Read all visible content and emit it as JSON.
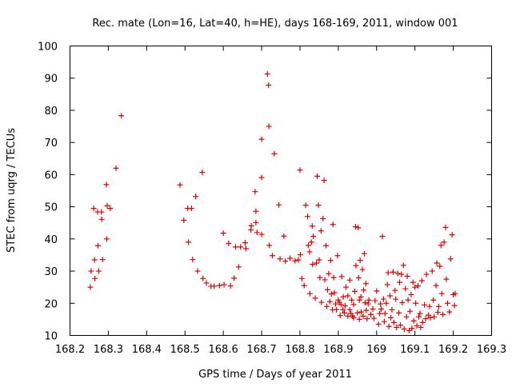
{
  "chart_data": {
    "type": "scatter",
    "title": "Rec. mate (Lon=16, Lat=40, h=HE), days 168-169, 2011, window 001",
    "xlabel": "GPS time / Days of year 2011",
    "ylabel": "STEC from uqrg / TECUs",
    "xlim": [
      168.2,
      169.3
    ],
    "ylim": [
      10,
      100
    ],
    "grid": false,
    "legend": "none",
    "marker": "plus",
    "marker_color": "#e00000",
    "x_ticks": [
      {
        "value": 168.2,
        "label": "168.2"
      },
      {
        "value": 168.3,
        "label": "168.3"
      },
      {
        "value": 168.4,
        "label": "168.4"
      },
      {
        "value": 168.5,
        "label": "168.5"
      },
      {
        "value": 168.6,
        "label": "168.6"
      },
      {
        "value": 168.7,
        "label": "168.7"
      },
      {
        "value": 168.8,
        "label": "168.8"
      },
      {
        "value": 168.9,
        "label": "168.9"
      },
      {
        "value": 169.0,
        "label": "169"
      },
      {
        "value": 169.1,
        "label": "169.1"
      },
      {
        "value": 169.2,
        "label": "169.2"
      },
      {
        "value": 169.3,
        "label": "169.3"
      }
    ],
    "y_ticks": [
      {
        "value": 10,
        "label": "10"
      },
      {
        "value": 20,
        "label": "20"
      },
      {
        "value": 30,
        "label": "30"
      },
      {
        "value": 40,
        "label": "40"
      },
      {
        "value": 50,
        "label": "50"
      },
      {
        "value": 60,
        "label": "60"
      },
      {
        "value": 70,
        "label": "70"
      },
      {
        "value": 80,
        "label": "80"
      },
      {
        "value": 90,
        "label": "90"
      },
      {
        "value": 100,
        "label": "100"
      }
    ],
    "series": [
      {
        "points": [
          [
            168.253,
            25.0
          ],
          [
            168.255,
            30.0
          ],
          [
            168.262,
            49.5
          ],
          [
            168.264,
            33.5
          ],
          [
            168.265,
            27.7
          ],
          [
            168.272,
            48.4
          ],
          [
            168.273,
            37.9
          ],
          [
            168.275,
            30.0
          ],
          [
            168.282,
            48.4
          ],
          [
            168.283,
            46.1
          ],
          [
            168.285,
            33.6
          ],
          [
            168.295,
            56.9
          ],
          [
            168.296,
            40.0
          ],
          [
            168.297,
            50.3
          ],
          [
            168.305,
            49.5
          ],
          [
            168.32,
            62.0
          ],
          [
            168.334,
            78.3
          ],
          [
            168.487,
            56.8
          ],
          [
            168.497,
            45.8
          ],
          [
            168.507,
            49.5
          ],
          [
            168.509,
            39.0
          ],
          [
            168.517,
            49.5
          ],
          [
            168.52,
            33.6
          ],
          [
            168.528,
            53.2
          ],
          [
            168.533,
            30.0
          ],
          [
            168.545,
            60.7
          ],
          [
            168.547,
            27.7
          ],
          [
            168.556,
            26.3
          ],
          [
            168.568,
            25.3
          ],
          [
            168.576,
            25.3
          ],
          [
            168.59,
            25.5
          ],
          [
            168.6,
            41.8
          ],
          [
            168.602,
            25.8
          ],
          [
            168.614,
            38.6
          ],
          [
            168.619,
            25.4
          ],
          [
            168.628,
            27.8
          ],
          [
            168.632,
            37.5
          ],
          [
            168.64,
            31.3
          ],
          [
            168.645,
            37.5
          ],
          [
            168.657,
            38.8
          ],
          [
            168.659,
            37.0
          ],
          [
            168.672,
            42.8
          ],
          [
            168.673,
            44.1
          ],
          [
            168.683,
            54.7
          ],
          [
            168.685,
            48.6
          ],
          [
            168.685,
            45.1
          ],
          [
            168.688,
            42.0
          ],
          [
            168.7,
            71.0
          ],
          [
            168.7,
            59.1
          ],
          [
            168.7,
            41.4
          ],
          [
            168.715,
            91.3
          ],
          [
            168.718,
            87.8
          ],
          [
            168.719,
            75.0
          ],
          [
            168.72,
            38.0
          ],
          [
            168.728,
            34.8
          ],
          [
            168.733,
            66.5
          ],
          [
            168.745,
            50.6
          ],
          [
            168.748,
            33.8
          ],
          [
            168.758,
            40.9
          ],
          [
            168.762,
            33.1
          ],
          [
            168.774,
            34.0
          ],
          [
            168.787,
            33.2
          ],
          [
            168.796,
            33.5
          ],
          [
            168.8,
            61.4
          ],
          [
            168.801,
            35.1
          ],
          [
            168.805,
            27.7
          ],
          [
            168.811,
            25.5
          ],
          [
            168.815,
            50.5
          ],
          [
            168.82,
            47.0
          ],
          [
            168.822,
            38.0
          ],
          [
            168.825,
            36.0
          ],
          [
            168.826,
            23.0
          ],
          [
            168.83,
            39.0
          ],
          [
            168.832,
            44.0
          ],
          [
            168.833,
            32.1
          ],
          [
            168.835,
            40.8
          ],
          [
            168.84,
            21.6
          ],
          [
            168.843,
            32.5
          ],
          [
            168.845,
            59.5
          ],
          [
            168.848,
            50.5
          ],
          [
            168.85,
            33.5
          ],
          [
            168.852,
            28.0
          ],
          [
            168.855,
            42.5
          ],
          [
            168.856,
            20.3
          ],
          [
            168.86,
            46.3
          ],
          [
            168.863,
            58.2
          ],
          [
            168.865,
            27.3
          ],
          [
            168.868,
            37.9
          ],
          [
            168.87,
            19.0
          ],
          [
            168.872,
            24.2
          ],
          [
            168.875,
            29.2
          ],
          [
            168.878,
            20.5
          ],
          [
            168.88,
            33.3
          ],
          [
            168.882,
            22.9
          ],
          [
            168.885,
            18.0
          ],
          [
            168.886,
            44.5
          ],
          [
            168.888,
            28.0
          ],
          [
            168.89,
            23.3
          ],
          [
            168.893,
            19.8
          ],
          [
            168.895,
            18.0
          ],
          [
            168.898,
            34.8
          ],
          [
            168.9,
            21.0
          ],
          [
            168.903,
            20.3
          ],
          [
            168.905,
            16.2
          ],
          [
            168.907,
            19.6
          ],
          [
            168.909,
            28.3
          ],
          [
            168.912,
            18.0
          ],
          [
            168.913,
            22.0
          ],
          [
            168.916,
            17.0
          ],
          [
            168.918,
            19.2
          ],
          [
            168.92,
            25.0
          ],
          [
            168.925,
            16.0
          ],
          [
            168.925,
            22.3
          ],
          [
            168.93,
            18.0
          ],
          [
            168.93,
            27.2
          ],
          [
            168.933,
            16.8
          ],
          [
            168.935,
            21.0
          ],
          [
            168.937,
            16.0
          ],
          [
            168.94,
            15.5
          ],
          [
            168.94,
            19.6
          ],
          [
            168.943,
            23.7
          ],
          [
            168.945,
            43.8
          ],
          [
            168.946,
            31.7
          ],
          [
            168.95,
            17.0
          ],
          [
            168.952,
            43.5
          ],
          [
            168.953,
            27.9
          ],
          [
            168.955,
            21.0
          ],
          [
            168.955,
            15.0
          ],
          [
            168.957,
            33.3
          ],
          [
            168.959,
            22.0
          ],
          [
            168.96,
            17.3
          ],
          [
            168.963,
            30.5
          ],
          [
            168.965,
            16.0
          ],
          [
            168.966,
            24.1
          ],
          [
            168.968,
            35.4
          ],
          [
            168.97,
            20.2
          ],
          [
            168.972,
            26.1
          ],
          [
            168.973,
            17.8
          ],
          [
            168.975,
            15.2
          ],
          [
            168.978,
            19.8
          ],
          [
            168.98,
            21.0
          ],
          [
            168.985,
            16.5
          ],
          [
            168.99,
            18.2
          ],
          [
            168.993,
            15.3
          ],
          [
            168.996,
            20.8
          ],
          [
            169.0,
            23.8
          ],
          [
            169.005,
            13.5
          ],
          [
            169.008,
            16.8
          ],
          [
            169.01,
            19.8
          ],
          [
            169.012,
            18.2
          ],
          [
            169.015,
            40.8
          ],
          [
            169.018,
            21.3
          ],
          [
            169.02,
            14.3
          ],
          [
            169.022,
            16.8
          ],
          [
            169.025,
            20.0
          ],
          [
            169.028,
            25.8
          ],
          [
            169.03,
            29.5
          ],
          [
            169.032,
            12.8
          ],
          [
            169.035,
            22.3
          ],
          [
            169.037,
            15.5
          ],
          [
            169.04,
            18.0
          ],
          [
            169.043,
            29.7
          ],
          [
            169.045,
            14.0
          ],
          [
            169.048,
            24.0
          ],
          [
            169.05,
            21.3
          ],
          [
            169.052,
            12.5
          ],
          [
            169.055,
            29.3
          ],
          [
            169.058,
            17.0
          ],
          [
            169.06,
            26.5
          ],
          [
            169.062,
            13.2
          ],
          [
            169.065,
            29.0
          ],
          [
            169.067,
            20.2
          ],
          [
            169.07,
            31.8
          ],
          [
            169.072,
            12.0
          ],
          [
            169.075,
            24.5
          ],
          [
            169.078,
            15.8
          ],
          [
            169.08,
            28.4
          ],
          [
            169.082,
            21.0
          ],
          [
            169.085,
            11.5
          ],
          [
            169.087,
            17.5
          ],
          [
            169.09,
            22.7
          ],
          [
            169.092,
            12.2
          ],
          [
            169.095,
            26.5
          ],
          [
            169.097,
            14.5
          ],
          [
            169.1,
            25.0
          ],
          [
            169.102,
            20.0
          ],
          [
            169.105,
            13.0
          ],
          [
            169.108,
            25.4
          ],
          [
            169.11,
            15.8
          ],
          [
            169.113,
            16.8
          ],
          [
            169.115,
            12.5
          ],
          [
            169.118,
            27.0
          ],
          [
            169.12,
            14.0
          ],
          [
            169.125,
            19.5
          ],
          [
            169.128,
            15.2
          ],
          [
            169.13,
            29.0
          ],
          [
            169.135,
            16.3
          ],
          [
            169.138,
            19.0
          ],
          [
            169.14,
            15.5
          ],
          [
            169.145,
            30.0
          ],
          [
            169.148,
            21.0
          ],
          [
            169.15,
            15.8
          ],
          [
            169.155,
            25.5
          ],
          [
            169.157,
            32.5
          ],
          [
            169.16,
            17.2
          ],
          [
            169.162,
            19.0
          ],
          [
            169.165,
            31.5
          ],
          [
            169.168,
            38.0
          ],
          [
            169.17,
            23.0
          ],
          [
            169.173,
            16.5
          ],
          [
            169.176,
            39.0
          ],
          [
            169.18,
            43.6
          ],
          [
            169.182,
            27.5
          ],
          [
            169.185,
            20.0
          ],
          [
            169.19,
            17.3
          ],
          [
            169.193,
            33.8
          ],
          [
            169.197,
            41.3
          ],
          [
            169.2,
            22.7
          ],
          [
            169.203,
            19.3
          ],
          [
            169.205,
            23.0
          ]
        ]
      }
    ]
  }
}
